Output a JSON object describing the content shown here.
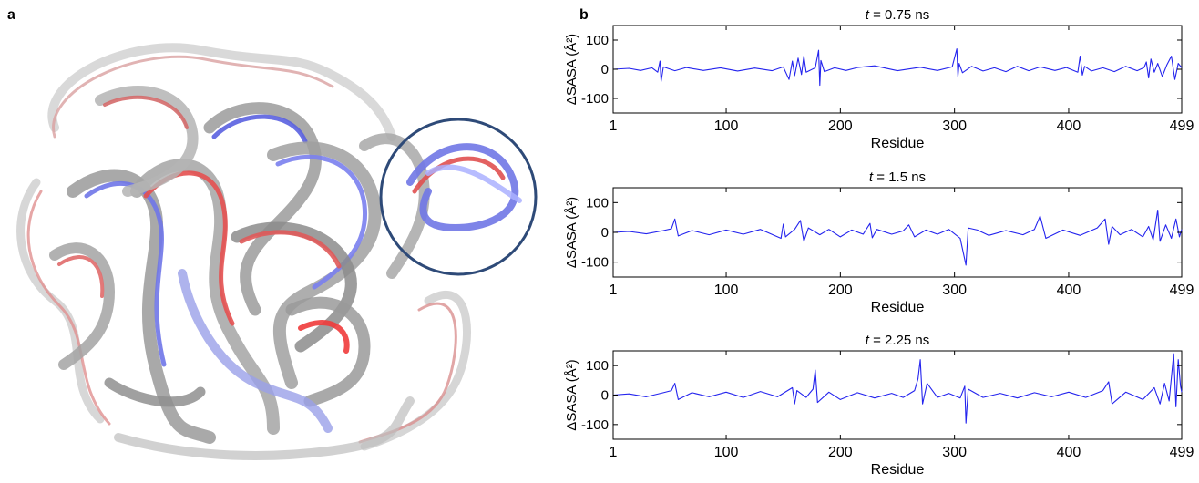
{
  "figure": {
    "panel_a_label": "a",
    "panel_b_label": "b"
  },
  "chart_data": [
    {
      "type": "line",
      "title": "t = 0.75 ns",
      "title_parts": {
        "italic": "t",
        "rest": " = 0.75 ns"
      },
      "xlabel": "Residue",
      "ylabel": "ΔSASA (Å²)",
      "xlim": [
        1,
        499
      ],
      "ylim": [
        -150,
        150
      ],
      "xticks": [
        1,
        100,
        200,
        300,
        400,
        499
      ],
      "yticks": [
        100,
        0,
        -100
      ],
      "grid": false,
      "series": [
        {
          "color": "#2424ee",
          "x": [
            1,
            15,
            25,
            35,
            40,
            42,
            43,
            45,
            55,
            65,
            80,
            95,
            110,
            125,
            140,
            150,
            155,
            158,
            160,
            163,
            166,
            168,
            170,
            178,
            181,
            182,
            183,
            186,
            195,
            205,
            215,
            230,
            250,
            270,
            285,
            298,
            302,
            303,
            304,
            307,
            315,
            325,
            335,
            345,
            355,
            365,
            375,
            388,
            398,
            408,
            410,
            412,
            414,
            420,
            430,
            440,
            450,
            460,
            466,
            468,
            470,
            472,
            475,
            478,
            482,
            486,
            490,
            493,
            496,
            499
          ],
          "y": [
            0,
            3,
            -4,
            5,
            -10,
            28,
            -42,
            8,
            -5,
            6,
            -4,
            5,
            -6,
            4,
            -5,
            8,
            -35,
            28,
            -22,
            38,
            -18,
            45,
            -10,
            5,
            65,
            -55,
            30,
            -8,
            5,
            -4,
            6,
            12,
            -5,
            7,
            -4,
            8,
            70,
            -25,
            20,
            -12,
            10,
            -6,
            5,
            -8,
            10,
            -5,
            8,
            -4,
            6,
            -10,
            45,
            -20,
            10,
            -6,
            5,
            -8,
            10,
            -5,
            6,
            25,
            -30,
            35,
            -10,
            20,
            -25,
            15,
            45,
            -35,
            20,
            5
          ]
        }
      ]
    },
    {
      "type": "line",
      "title": "t = 1.5 ns",
      "title_parts": {
        "italic": "t",
        "rest": " = 1.5 ns"
      },
      "xlabel": "Residue",
      "ylabel": "ΔSASA (Å²)",
      "xlim": [
        1,
        499
      ],
      "ylim": [
        -150,
        150
      ],
      "xticks": [
        1,
        100,
        200,
        300,
        400,
        499
      ],
      "yticks": [
        100,
        0,
        -100
      ],
      "grid": false,
      "series": [
        {
          "color": "#2424ee",
          "x": [
            1,
            15,
            30,
            45,
            52,
            55,
            58,
            70,
            85,
            100,
            115,
            130,
            148,
            150,
            152,
            160,
            165,
            168,
            172,
            182,
            190,
            200,
            210,
            220,
            226,
            228,
            232,
            245,
            255,
            260,
            265,
            275,
            285,
            295,
            305,
            310,
            312,
            320,
            330,
            345,
            360,
            370,
            375,
            380,
            395,
            410,
            425,
            432,
            435,
            438,
            445,
            455,
            465,
            470,
            474,
            478,
            480,
            485,
            490,
            494,
            497,
            499
          ],
          "y": [
            0,
            3,
            -5,
            6,
            12,
            45,
            -12,
            6,
            -8,
            8,
            -6,
            10,
            -20,
            28,
            -15,
            10,
            40,
            -30,
            15,
            -8,
            10,
            -15,
            8,
            -6,
            30,
            -18,
            10,
            -6,
            5,
            25,
            -15,
            8,
            -6,
            10,
            -20,
            -110,
            15,
            8,
            -10,
            6,
            -8,
            10,
            55,
            -20,
            8,
            -10,
            15,
            45,
            -40,
            20,
            -8,
            10,
            -15,
            20,
            -25,
            75,
            -30,
            25,
            -20,
            45,
            -15,
            10
          ]
        }
      ]
    },
    {
      "type": "line",
      "title": "t = 2.25 ns",
      "title_parts": {
        "italic": "t",
        "rest": " = 2.25 ns"
      },
      "xlabel": "Residue",
      "ylabel": "ΔSASA (Å²)",
      "xlim": [
        1,
        499
      ],
      "ylim": [
        -150,
        150
      ],
      "xticks": [
        1,
        100,
        200,
        300,
        400,
        499
      ],
      "yticks": [
        100,
        0,
        -100
      ],
      "grid": false,
      "series": [
        {
          "color": "#2424ee",
          "x": [
            1,
            15,
            30,
            45,
            52,
            55,
            58,
            70,
            85,
            100,
            115,
            130,
            145,
            158,
            160,
            162,
            170,
            176,
            178,
            180,
            190,
            200,
            215,
            230,
            245,
            255,
            265,
            268,
            270,
            272,
            276,
            285,
            295,
            305,
            309,
            310,
            312,
            325,
            340,
            355,
            370,
            385,
            400,
            415,
            430,
            435,
            438,
            450,
            465,
            475,
            480,
            484,
            488,
            490,
            492,
            494,
            496,
            498,
            499
          ],
          "y": [
            0,
            4,
            -6,
            8,
            15,
            40,
            -15,
            8,
            -6,
            10,
            -8,
            12,
            -6,
            25,
            -30,
            15,
            -8,
            20,
            85,
            -25,
            10,
            -15,
            8,
            -10,
            6,
            -8,
            15,
            55,
            120,
            -30,
            40,
            -8,
            6,
            -10,
            30,
            -95,
            20,
            -8,
            6,
            -10,
            8,
            -6,
            10,
            -8,
            15,
            45,
            -30,
            10,
            -15,
            25,
            -30,
            40,
            -20,
            60,
            140,
            -40,
            120,
            30,
            10
          ]
        }
      ]
    }
  ]
}
